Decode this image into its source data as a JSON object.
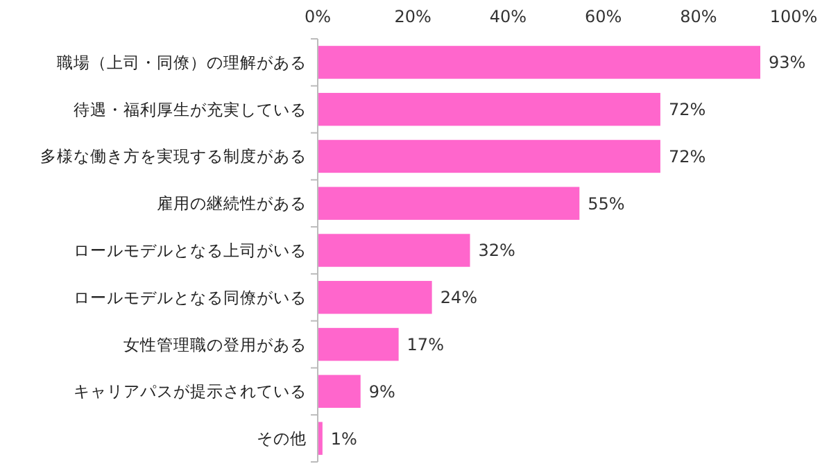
{
  "chart_data": {
    "type": "bar",
    "orientation": "horizontal",
    "categories": [
      "職場（上司・同僚）の理解がある",
      "待遇・福利厚生が充実している",
      "多様な働き方を実現する制度がある",
      "雇用の継続性がある",
      "ロールモデルとなる上司がいる",
      "ロールモデルとなる同僚がいる",
      "女性管理職の登用がある",
      "キャリアパスが提示されている",
      "その他"
    ],
    "values": [
      93,
      72,
      72,
      55,
      32,
      24,
      17,
      9,
      1
    ],
    "value_labels": [
      "93%",
      "72%",
      "72%",
      "55%",
      "32%",
      "24%",
      "17%",
      "9%",
      "1%"
    ],
    "color": "#ff66cc",
    "xlim": [
      0,
      100
    ],
    "xticks": [
      {
        "value": 0,
        "label": "0%"
      },
      {
        "value": 20,
        "label": "20%"
      },
      {
        "value": 40,
        "label": "40%"
      },
      {
        "value": 60,
        "label": "60%"
      },
      {
        "value": 80,
        "label": "80%"
      },
      {
        "value": 100,
        "label": "100%"
      }
    ],
    "grid": false
  }
}
